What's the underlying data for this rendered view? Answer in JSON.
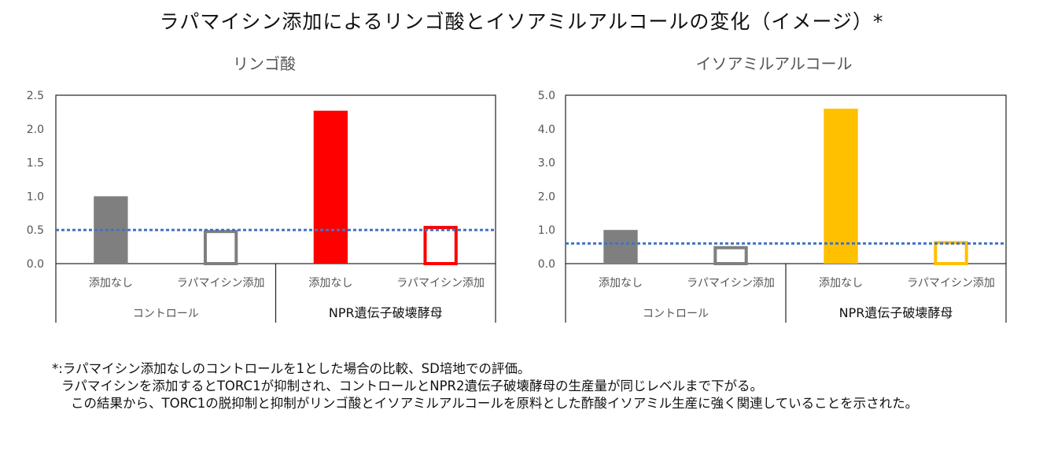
{
  "main_title": "ラパマイシン添加によるリンゴ酸とイソアミルアルコールの変化（イメージ）*",
  "chart_data": [
    {
      "type": "bar",
      "title": "リンゴ酸",
      "categories": [
        "添加なし",
        "ラパマイシン添加",
        "添加なし",
        "ラパマイシン添加"
      ],
      "groups": [
        "コントロール",
        "NPR遺伝子破壊酵母"
      ],
      "values": [
        1.0,
        0.5,
        2.27,
        0.56
      ],
      "bar_styles": [
        "filled",
        "outline",
        "filled",
        "outline"
      ],
      "bar_colors": [
        "#7f7f7f",
        "#7f7f7f",
        "#ff0000",
        "#ff0000"
      ],
      "ylim": [
        0,
        2.5
      ],
      "yticks": [
        "0.0",
        "0.5",
        "1.0",
        "1.5",
        "2.0",
        "2.5"
      ],
      "reference_line": 0.5,
      "reference_color": "#4472c4",
      "grid": false,
      "xlabel": "",
      "ylabel": ""
    },
    {
      "type": "bar",
      "title": "イソアミルアルコール",
      "categories": [
        "添加なし",
        "ラパマイシン添加",
        "添加なし",
        "ラパマイシン添加"
      ],
      "groups": [
        "コントロール",
        "NPR遺伝子破壊酵母"
      ],
      "values": [
        1.0,
        0.52,
        4.6,
        0.67
      ],
      "bar_styles": [
        "filled",
        "outline",
        "filled",
        "outline"
      ],
      "bar_colors": [
        "#7f7f7f",
        "#7f7f7f",
        "#ffc000",
        "#ffc000"
      ],
      "ylim": [
        0,
        5.0
      ],
      "yticks": [
        "0.0",
        "1.0",
        "2.0",
        "3.0",
        "4.0",
        "5.0"
      ],
      "reference_line": 0.6,
      "reference_color": "#4472c4",
      "grid": false,
      "xlabel": "",
      "ylabel": ""
    }
  ],
  "footnote": {
    "line1": "*:ラパマイシン添加なしのコントロールを1とした場合の比較、SD培地での評価。",
    "line2": "ラパマイシンを添加するとTORC1が抑制され、コントロールとNPR2遺伝子破壊酵母の生産量が同じレベルまで下がる。",
    "line3": "この結果から、TORC1の脱抑制と抑制がリンゴ酸とイソアミルアルコールを原料とした酢酸イソアミル生産に強く関連していることを示された。"
  }
}
